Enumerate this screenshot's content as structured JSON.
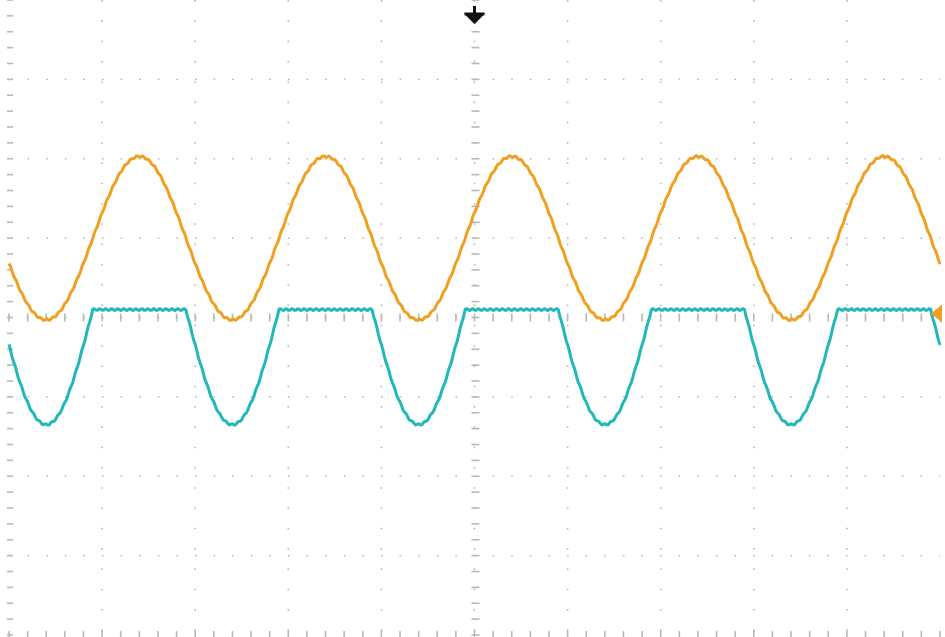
{
  "chart_data": {
    "type": "line",
    "title": "",
    "xlabel": "",
    "ylabel": "",
    "grid": true,
    "divisions": {
      "x": 10,
      "y": 8
    },
    "minor_ticks_per_division": 5,
    "xlim": [
      0,
      10
    ],
    "ylim": [
      -4,
      4
    ],
    "markers": {
      "trigger_position_div": 5,
      "trigger_level_div": 0.05,
      "trigger_level_color": "#f0a020",
      "trigger_position_color": "#111111"
    },
    "series": [
      {
        "color": "#f0a020",
        "shape": "sine",
        "offset_div": 1.0,
        "amplitude_div": 1.03,
        "period_div": 2.0,
        "first_peak_div": 1.4,
        "clip_top_div": null
      },
      {
        "color": "#20b8b8",
        "shape": "clipped-sine",
        "offset_div": 0.1,
        "amplitude_div": 1.45,
        "period_div": 2.0,
        "first_peak_div": 1.4,
        "clip_top_div": 0.1
      }
    ]
  }
}
